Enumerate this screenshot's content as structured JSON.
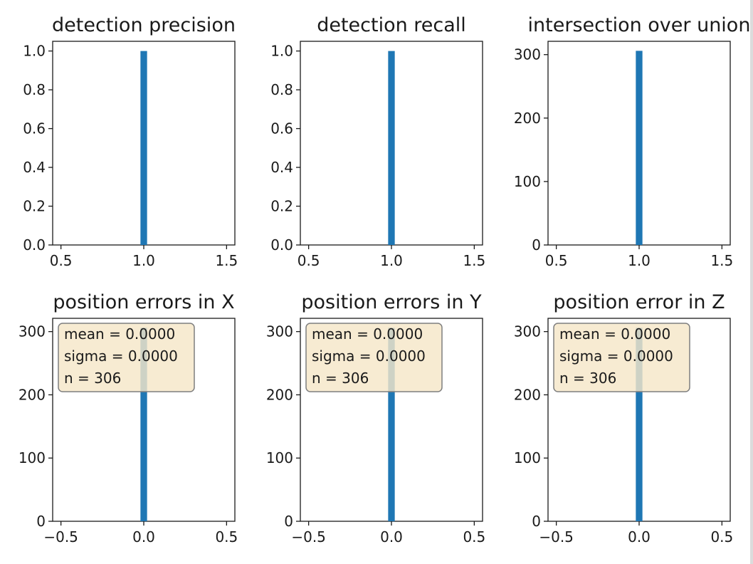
{
  "chart_data": [
    {
      "type": "bar",
      "title": "detection precision",
      "xlim": [
        0.45,
        1.55
      ],
      "ylim": [
        0,
        1.05
      ],
      "xticks": [
        {
          "v": 0.5,
          "label": "0.5"
        },
        {
          "v": 1.0,
          "label": "1.0"
        },
        {
          "v": 1.5,
          "label": "1.5"
        }
      ],
      "yticks": [
        {
          "v": 0,
          "label": "0.0"
        },
        {
          "v": 0.2,
          "label": "0.2"
        },
        {
          "v": 0.4,
          "label": "0.4"
        },
        {
          "v": 0.6,
          "label": "0.6"
        },
        {
          "v": 0.8,
          "label": "0.8"
        },
        {
          "v": 1.0,
          "label": "1.0"
        }
      ],
      "bars": [
        {
          "x0": 0.98,
          "x1": 1.02,
          "value": 1.0
        }
      ],
      "color": "#1f77b4"
    },
    {
      "type": "bar",
      "title": "detection recall",
      "xlim": [
        0.45,
        1.55
      ],
      "ylim": [
        0,
        1.05
      ],
      "xticks": [
        {
          "v": 0.5,
          "label": "0.5"
        },
        {
          "v": 1.0,
          "label": "1.0"
        },
        {
          "v": 1.5,
          "label": "1.5"
        }
      ],
      "yticks": [
        {
          "v": 0,
          "label": "0.0"
        },
        {
          "v": 0.2,
          "label": "0.2"
        },
        {
          "v": 0.4,
          "label": "0.4"
        },
        {
          "v": 0.6,
          "label": "0.6"
        },
        {
          "v": 0.8,
          "label": "0.8"
        },
        {
          "v": 1.0,
          "label": "1.0"
        }
      ],
      "bars": [
        {
          "x0": 0.98,
          "x1": 1.02,
          "value": 1.0
        }
      ],
      "color": "#1f77b4"
    },
    {
      "type": "bar",
      "title": "intersection over union",
      "xlim": [
        0.45,
        1.55
      ],
      "ylim": [
        0,
        321
      ],
      "xticks": [
        {
          "v": 0.5,
          "label": "0.5"
        },
        {
          "v": 1.0,
          "label": "1.0"
        },
        {
          "v": 1.5,
          "label": "1.5"
        }
      ],
      "yticks": [
        {
          "v": 0,
          "label": "0"
        },
        {
          "v": 100,
          "label": "100"
        },
        {
          "v": 200,
          "label": "200"
        },
        {
          "v": 300,
          "label": "300"
        }
      ],
      "bars": [
        {
          "x0": 0.98,
          "x1": 1.02,
          "value": 306
        }
      ],
      "color": "#1f77b4"
    },
    {
      "type": "bar",
      "title": "position errors in X",
      "xlim": [
        -0.55,
        0.55
      ],
      "ylim": [
        0,
        321
      ],
      "xticks": [
        {
          "v": -0.5,
          "label": "−0.5"
        },
        {
          "v": 0,
          "label": "0.0"
        },
        {
          "v": 0.5,
          "label": "0.5"
        }
      ],
      "yticks": [
        {
          "v": 0,
          "label": "0"
        },
        {
          "v": 100,
          "label": "100"
        },
        {
          "v": 200,
          "label": "200"
        },
        {
          "v": 300,
          "label": "300"
        }
      ],
      "bars": [
        {
          "x0": -0.02,
          "x1": 0.02,
          "value": 306
        }
      ],
      "color": "#1f77b4",
      "annotation": [
        "mean = 0.0000",
        "sigma = 0.0000",
        "n = 306"
      ]
    },
    {
      "type": "bar",
      "title": "position errors in Y",
      "xlim": [
        -0.55,
        0.55
      ],
      "ylim": [
        0,
        321
      ],
      "xticks": [
        {
          "v": -0.5,
          "label": "−0.5"
        },
        {
          "v": 0,
          "label": "0.0"
        },
        {
          "v": 0.5,
          "label": "0.5"
        }
      ],
      "yticks": [
        {
          "v": 0,
          "label": "0"
        },
        {
          "v": 100,
          "label": "100"
        },
        {
          "v": 200,
          "label": "200"
        },
        {
          "v": 300,
          "label": "300"
        }
      ],
      "bars": [
        {
          "x0": -0.02,
          "x1": 0.02,
          "value": 306
        }
      ],
      "color": "#1f77b4",
      "annotation": [
        "mean = 0.0000",
        "sigma = 0.0000",
        "n = 306"
      ]
    },
    {
      "type": "bar",
      "title": "position error in Z",
      "xlim": [
        -0.55,
        0.55
      ],
      "ylim": [
        0,
        321
      ],
      "xticks": [
        {
          "v": -0.5,
          "label": "−0.5"
        },
        {
          "v": 0,
          "label": "0.0"
        },
        {
          "v": 0.5,
          "label": "0.5"
        }
      ],
      "yticks": [
        {
          "v": 0,
          "label": "0"
        },
        {
          "v": 100,
          "label": "100"
        },
        {
          "v": 200,
          "label": "200"
        },
        {
          "v": 300,
          "label": "300"
        }
      ],
      "bars": [
        {
          "x0": -0.02,
          "x1": 0.02,
          "value": 306
        }
      ],
      "color": "#1f77b4",
      "annotation": [
        "mean = 0.0000",
        "sigma = 0.0000",
        "n = 306"
      ]
    }
  ]
}
